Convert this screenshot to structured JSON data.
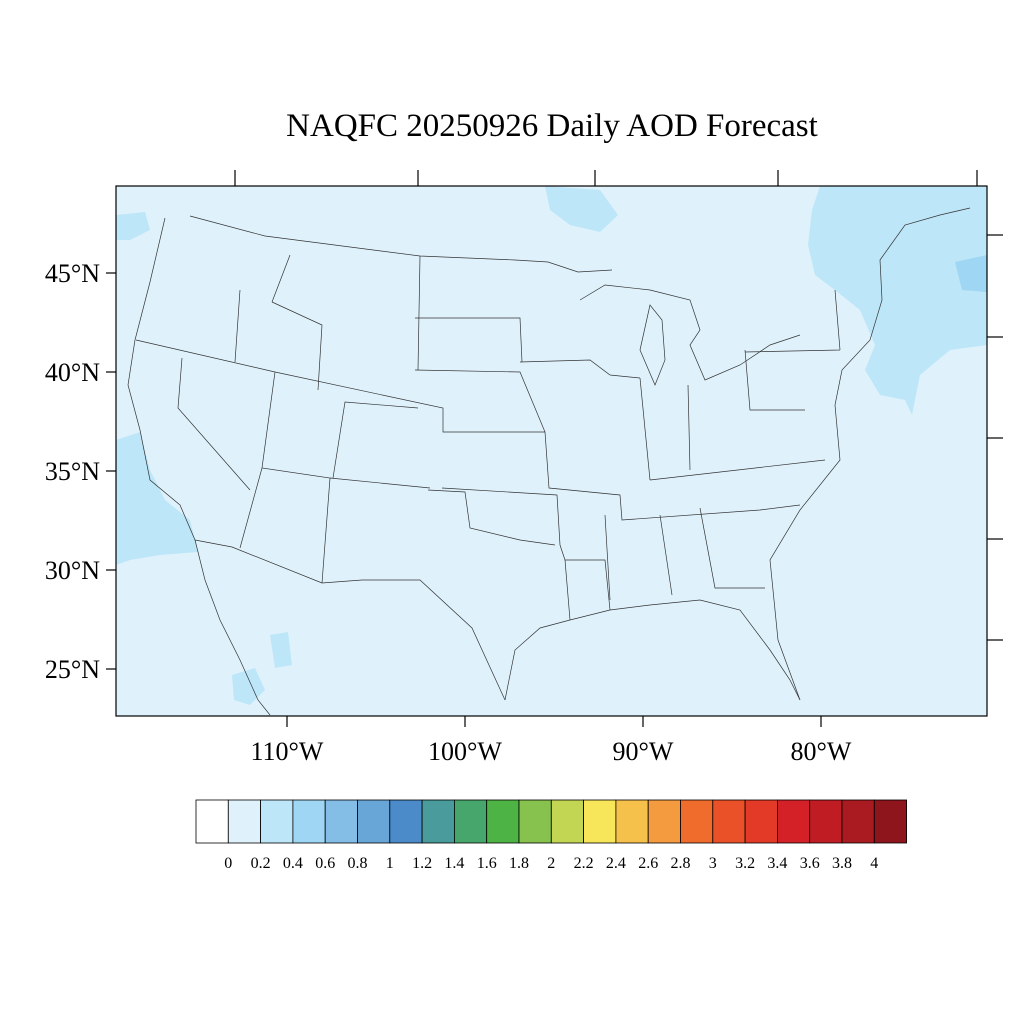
{
  "title": "NAQFC 20250926 Daily AOD Forecast",
  "lat_labels": [
    "45°N",
    "40°N",
    "35°N",
    "30°N",
    "25°N"
  ],
  "lon_labels": [
    "110°W",
    "100°W",
    "90°W",
    "80°W"
  ],
  "colorbar": {
    "labels": [
      "0",
      "0.2",
      "0.4",
      "0.6",
      "0.8",
      "1",
      "1.2",
      "1.4",
      "1.6",
      "1.8",
      "2",
      "2.2",
      "2.4",
      "2.6",
      "2.8",
      "3",
      "3.2",
      "3.4",
      "3.6",
      "3.8",
      "4"
    ],
    "colors": [
      "#ffffff",
      "#dff2fc",
      "#bde6f8",
      "#9ed6f3",
      "#84bde6",
      "#68a6d8",
      "#4b8bc9",
      "#4a9b9b",
      "#46a66c",
      "#4cb344",
      "#86c24d",
      "#c2d653",
      "#f7e65a",
      "#f6c14a",
      "#f49b3f",
      "#f06c2c",
      "#eb5129",
      "#e23a27",
      "#d42027",
      "#c01c24",
      "#a91a21",
      "#8e151b"
    ]
  },
  "colors": {
    "background_aod": "#dff2fc",
    "higher_aod": "#bde6f8",
    "peak_aod": "#9ed6f3",
    "boundaries": "#333333"
  }
}
